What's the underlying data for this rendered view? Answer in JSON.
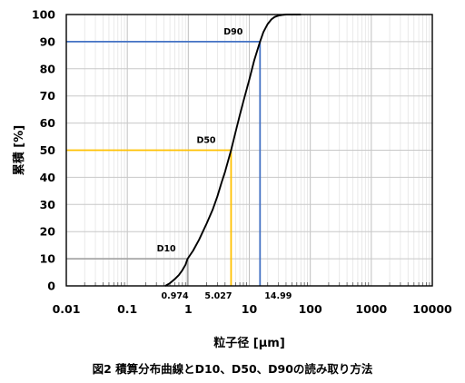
{
  "caption": "図2 積算分布曲線とD10、D50、D90の読み取り方法",
  "chart_data": {
    "type": "line",
    "xscale": "log",
    "xlabel": "粒子径 [μm]",
    "ylabel": "累積 [%]",
    "xlim": [
      0.01,
      10000
    ],
    "ylim": [
      0,
      100
    ],
    "x_ticks": [
      "0.01",
      "0.1",
      "1",
      "10",
      "100",
      "1000",
      "10000"
    ],
    "y_ticks": [
      "0",
      "10",
      "20",
      "30",
      "40",
      "50",
      "60",
      "70",
      "80",
      "90",
      "100"
    ],
    "grid": true,
    "series": [
      {
        "x": [
          0.42,
          0.5,
          0.6,
          0.7,
          0.8,
          0.9,
          0.974,
          1.2,
          1.5,
          2,
          2.5,
          3,
          3.5,
          4,
          5.027,
          6,
          7,
          8,
          10,
          12,
          14.99,
          17,
          20,
          23,
          26,
          30,
          35,
          40,
          45,
          50
        ],
        "y": [
          0,
          1,
          2.5,
          4,
          5.8,
          7.8,
          10,
          13,
          17,
          23,
          28,
          33,
          38,
          42,
          50,
          57,
          63,
          68,
          76,
          83,
          90,
          93.5,
          96.5,
          98.2,
          99.1,
          99.6,
          99.85,
          100,
          100,
          100
        ]
      }
    ],
    "markers": [
      {
        "label": "D10",
        "y": 10,
        "x": 0.974,
        "value_label": "0.974",
        "color": "#a6a6a6"
      },
      {
        "label": "D50",
        "y": 50,
        "x": 5.027,
        "value_label": "5.027",
        "color": "#ffc000"
      },
      {
        "label": "D90",
        "y": 90,
        "x": 14.99,
        "value_label": "14.99",
        "color": "#4472c4"
      }
    ]
  }
}
